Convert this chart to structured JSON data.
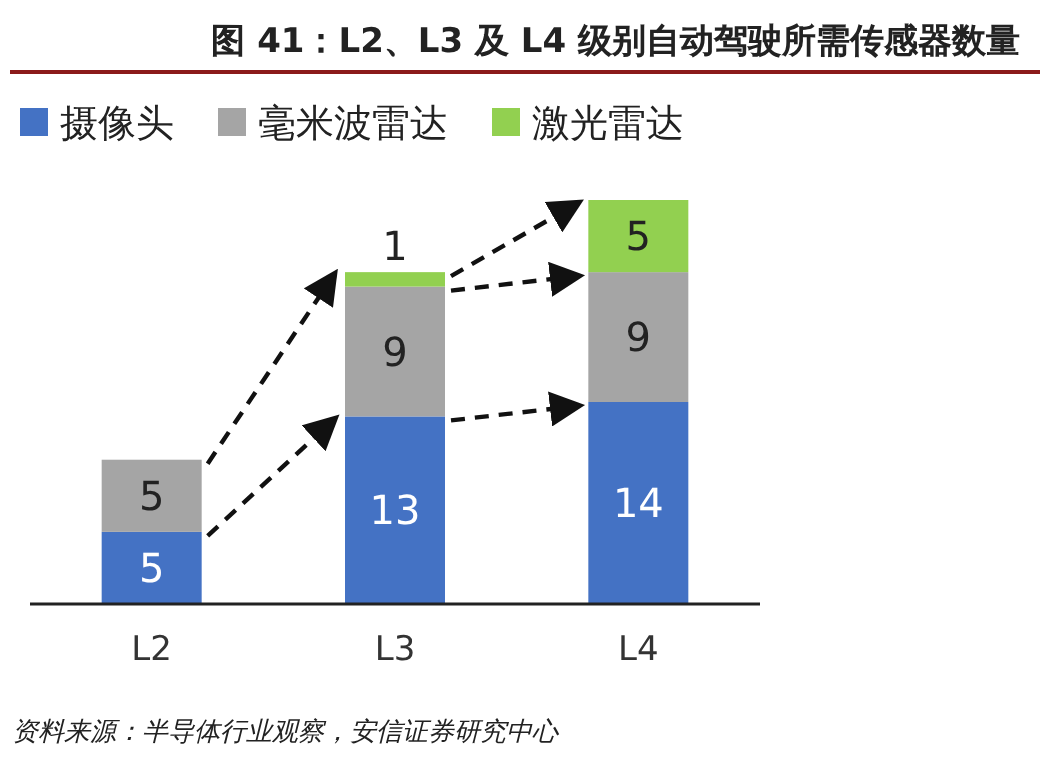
{
  "chart_data": {
    "type": "bar",
    "stacked": true,
    "title": "图 41：L2、L3 及 L4 级别自动驾驶所需传感器数量",
    "categories": [
      "L2",
      "L3",
      "L4"
    ],
    "series": [
      {
        "name": "摄像头",
        "color": "#4472c4",
        "values": [
          5,
          13,
          14
        ]
      },
      {
        "name": "毫米波雷达",
        "color": "#a5a5a5",
        "values": [
          5,
          9,
          9
        ]
      },
      {
        "name": "激光雷达",
        "color": "#92d050",
        "values": [
          null,
          1,
          5
        ]
      }
    ],
    "data_labels": true,
    "legend": "top left",
    "annotations": [
      "资料来源：半导体行业观察，安信证券研究中心"
    ]
  }
}
